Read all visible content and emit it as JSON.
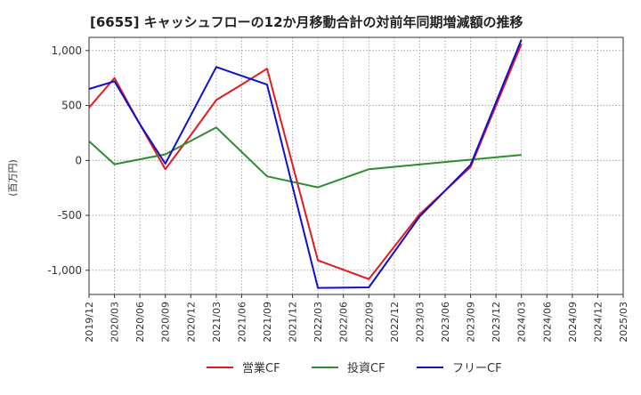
{
  "chart_data": {
    "type": "line",
    "title": "[6655]  キャッシュフローの12か月移動合計の対前年同期増減額の推移",
    "ylabel": "(百万円)",
    "xlabel": "",
    "x": [
      "2019/12",
      "2020/03",
      "2020/06",
      "2020/09",
      "2020/12",
      "2021/03",
      "2021/06",
      "2021/09",
      "2021/12",
      "2022/03",
      "2022/06",
      "2022/09",
      "2022/12",
      "2023/03",
      "2023/06",
      "2023/09",
      "2023/12",
      "2024/03",
      "2024/06",
      "2024/09",
      "2024/12",
      "2025/03"
    ],
    "ylim": [
      -1220,
      1120
    ],
    "yticks": [
      1000,
      500,
      0,
      -500,
      -1000
    ],
    "ytick_labels": [
      "1,000",
      "500",
      "0",
      "-500",
      "-1,000"
    ],
    "grid": true,
    "legend_position": "bottom",
    "series": [
      {
        "name": "営業CF",
        "color": "#e31a1c",
        "values": [
          480,
          750,
          330,
          -80,
          230,
          550,
          690,
          835,
          null,
          -910,
          null,
          -1080,
          null,
          -490,
          null,
          -60,
          null,
          1060,
          null,
          null,
          null,
          null
        ]
      },
      {
        "name": "投資CF",
        "color": "#2e8b2e",
        "values": [
          175,
          -35,
          null,
          55,
          null,
          300,
          null,
          -145,
          null,
          -245,
          null,
          -80,
          null,
          null,
          null,
          null,
          null,
          50,
          null,
          null,
          null,
          null
        ]
      },
      {
        "name": "フリーCF",
        "color": "#1010c8",
        "values": [
          650,
          720,
          330,
          -30,
          null,
          850,
          null,
          690,
          null,
          -1160,
          null,
          -1155,
          null,
          -510,
          null,
          -40,
          null,
          1100,
          null,
          null,
          null,
          null
        ]
      }
    ]
  }
}
